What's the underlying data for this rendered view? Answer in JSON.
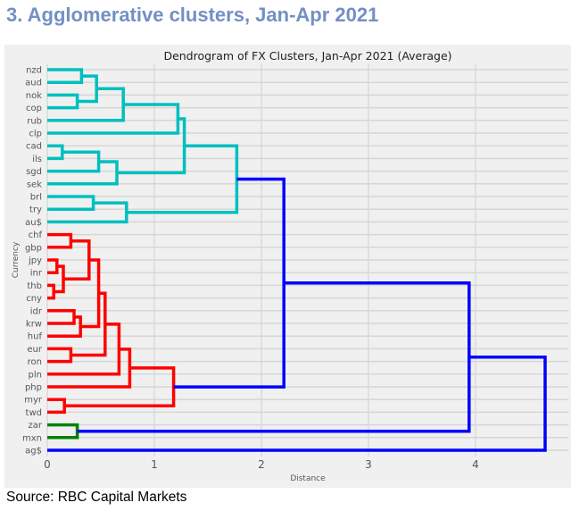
{
  "heading": "3. Agglomerative clusters, Jan-Apr 2021",
  "source": "Source: RBC Capital Markets",
  "chart_data": {
    "type": "dendrogram",
    "orientation": "horizontal",
    "title": "Dendrogram of FX Clusters, Jan-Apr 2021 (Average)",
    "xlabel": "Distance",
    "ylabel": "Currency",
    "xlim": [
      0,
      4.87
    ],
    "xticks": [
      0,
      1,
      2,
      3,
      4
    ],
    "grid": true,
    "background": "#f0f0f0",
    "leaves": [
      "nzd",
      "aud",
      "nok",
      "cop",
      "rub",
      "clp",
      "cad",
      "ils",
      "sgd",
      "sek",
      "brl",
      "try",
      "au$",
      "chf",
      "gbp",
      "jpy",
      "inr",
      "thb",
      "cny",
      "idr",
      "krw",
      "huf",
      "eur",
      "ron",
      "pln",
      "php",
      "myr",
      "twd",
      "zar",
      "mxn",
      "ag$"
    ],
    "colors": {
      "cyan": "#00bfbf",
      "red": "#ff0000",
      "green": "#008000",
      "blue": "#0000ff"
    },
    "tree": {
      "d": 4.65,
      "c": "blue",
      "ch": [
        {
          "d": 3.94,
          "c": "blue",
          "ch": [
            {
              "d": 2.21,
              "c": "blue",
              "ch": [
                {
                  "d": 1.77,
                  "c": "cyan",
                  "ch": [
                    {
                      "d": 1.28,
                      "c": "cyan",
                      "ch": [
                        {
                          "d": 1.22,
                          "c": "cyan",
                          "ch": [
                            {
                              "d": 0.71,
                              "c": "cyan",
                              "ch": [
                                {
                                  "d": 0.46,
                                  "c": "cyan",
                                  "ch": [
                                    {
                                      "d": 0.32,
                                      "c": "cyan",
                                      "ch": [
                                        "nzd",
                                        "aud"
                                      ]
                                    },
                                    {
                                      "d": 0.28,
                                      "c": "cyan",
                                      "ch": [
                                        "nok",
                                        "cop"
                                      ]
                                    }
                                  ]
                                },
                                "rub"
                              ]
                            },
                            "clp"
                          ]
                        },
                        {
                          "d": 0.65,
                          "c": "cyan",
                          "ch": [
                            {
                              "d": 0.48,
                              "c": "cyan",
                              "ch": [
                                {
                                  "d": 0.14,
                                  "c": "cyan",
                                  "ch": [
                                    "cad",
                                    "ils"
                                  ]
                                },
                                "sgd"
                              ]
                            },
                            "sek"
                          ]
                        }
                      ]
                    },
                    {
                      "d": 0.74,
                      "c": "cyan",
                      "ch": [
                        {
                          "d": 0.43,
                          "c": "cyan",
                          "ch": [
                            "brl",
                            "try"
                          ]
                        },
                        "au$"
                      ]
                    }
                  ]
                },
                {
                  "d": 1.18,
                  "c": "red",
                  "ch": [
                    {
                      "d": 0.77,
                      "c": "red",
                      "ch": [
                        {
                          "d": 0.67,
                          "c": "red",
                          "ch": [
                            {
                              "d": 0.54,
                              "c": "red",
                              "ch": [
                                {
                                  "d": 0.48,
                                  "c": "red",
                                  "ch": [
                                    {
                                      "d": 0.39,
                                      "c": "red",
                                      "ch": [
                                        {
                                          "d": 0.22,
                                          "c": "red",
                                          "ch": [
                                            "chf",
                                            "gbp"
                                          ]
                                        },
                                        {
                                          "d": 0.15,
                                          "c": "red",
                                          "ch": [
                                            {
                                              "d": 0.09,
                                              "c": "red",
                                              "ch": [
                                                "jpy",
                                                "inr"
                                              ]
                                            },
                                            {
                                              "d": 0.06,
                                              "c": "red",
                                              "ch": [
                                                "thb",
                                                "cny"
                                              ]
                                            }
                                          ]
                                        }
                                      ]
                                    },
                                    {
                                      "d": 0.31,
                                      "c": "red",
                                      "ch": [
                                        {
                                          "d": 0.25,
                                          "c": "red",
                                          "ch": [
                                            "idr",
                                            "krw"
                                          ]
                                        },
                                        "huf"
                                      ]
                                    }
                                  ]
                                },
                                {
                                  "d": 0.22,
                                  "c": "red",
                                  "ch": [
                                    "eur",
                                    "ron"
                                  ]
                                }
                              ]
                            },
                            "pln"
                          ]
                        },
                        "php"
                      ]
                    },
                    {
                      "d": 0.16,
                      "c": "red",
                      "ch": [
                        "myr",
                        "twd"
                      ]
                    }
                  ]
                }
              ]
            },
            {
              "d": 0.28,
              "c": "green",
              "ch": [
                "zar",
                "mxn"
              ]
            }
          ]
        },
        "ag$"
      ]
    }
  }
}
